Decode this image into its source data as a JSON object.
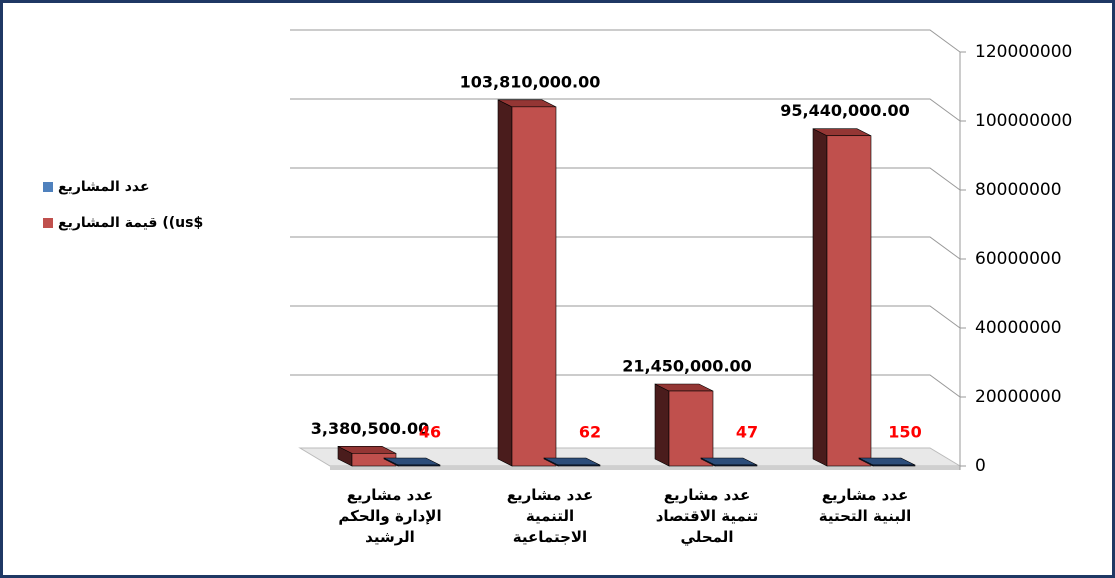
{
  "chart_data": {
    "type": "bar3d",
    "categories": [
      "عدد مشاريع\nالإدارة والحكم\nالرشيد",
      "عدد مشاريع\nالتنمية\nالاجتماعية",
      "عدد مشاريع\nتنمية الاقتصاد\nالمحلي",
      "عدد مشاريع\nالبنية التحتية"
    ],
    "series": [
      {
        "name": "عدد المشاريع",
        "color": "#4f81bd",
        "values": [
          46,
          62,
          47,
          150
        ]
      },
      {
        "name": "قيمة المشاريع ((us$",
        "color": "#c0504d",
        "values": [
          3380500,
          103810000,
          21450000,
          95440000
        ],
        "value_labels": [
          "3,380,500.00",
          "103,810,000.00",
          "21,450,000.00",
          "95,440,000.00"
        ]
      }
    ],
    "ylim": [
      0,
      120000000
    ],
    "yticks": [
      0,
      20000000,
      40000000,
      60000000,
      80000000,
      100000000,
      120000000
    ],
    "grid": true,
    "legend": "left"
  }
}
